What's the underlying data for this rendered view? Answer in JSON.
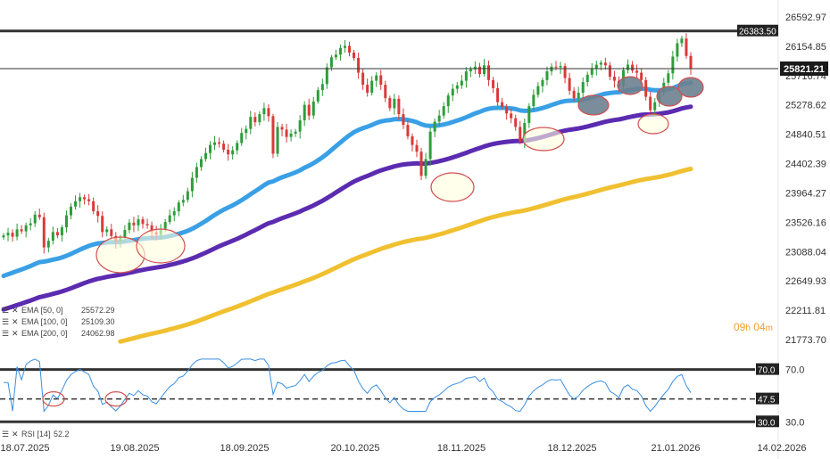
{
  "chart_data": {
    "type": "candlestick",
    "price_axis": {
      "ticks": [
        "26592.97",
        "26154.85",
        "25716.74",
        "25278.62",
        "24840.51",
        "24402.39",
        "23964.27",
        "23526.16",
        "23088.04",
        "22649.93",
        "22211.81",
        "21773.70"
      ],
      "ylim": [
        21773.7,
        26592.97
      ]
    },
    "rsi_axis": {
      "ticks": [
        "70.0",
        "30.0"
      ],
      "ylim": [
        22,
        82
      ]
    },
    "dates": [
      "18.07.2025",
      "19.08.2025",
      "18.09.2025",
      "20.10.2025",
      "18.11.2025",
      "18.12.2025",
      "21.01.2026",
      "14.02.2026"
    ],
    "current_price": "25821.21",
    "resistance": "26383.50",
    "countdown": {
      "h": "09",
      "h_unit": "h",
      "m": "04",
      "m_unit": "m"
    },
    "rsi_lines": {
      "upper": "70.0",
      "lower": "30.0",
      "mid": "47.5"
    },
    "legend": [
      {
        "label": "EMA [50, 0]",
        "value": "25572.29",
        "color": "#3aa0e6"
      },
      {
        "label": "EMA [100, 0]",
        "value": "25109.30",
        "color": "#5b2bb0"
      },
      {
        "label": "EMA [200, 0]",
        "value": "24062.98",
        "color": "#f0c030"
      }
    ],
    "rsi_legend": {
      "label": "RSI [14]",
      "value": "52.2"
    },
    "closes": [
      23330,
      23370,
      23310,
      23420,
      23390,
      23480,
      23510,
      23640,
      23600,
      23150,
      23250,
      23380,
      23330,
      23450,
      23630,
      23760,
      23840,
      23900,
      23870,
      23840,
      23690,
      23620,
      23380,
      23420,
      23320,
      23230,
      23300,
      23410,
      23520,
      23480,
      23570,
      23500,
      23480,
      23380,
      23340,
      23430,
      23530,
      23630,
      23690,
      23820,
      23860,
      23990,
      24190,
      24350,
      24470,
      24560,
      24680,
      24720,
      24700,
      24610,
      24540,
      24600,
      24710,
      24860,
      24920,
      25100,
      25020,
      25140,
      25230,
      25110,
      24550,
      24950,
      24910,
      24800,
      24850,
      24880,
      25050,
      25280,
      25120,
      25330,
      25500,
      25590,
      25840,
      25990,
      26030,
      26130,
      26160,
      26060,
      25980,
      25760,
      25580,
      25460,
      25640,
      25720,
      25580,
      25380,
      25230,
      25370,
      25140,
      24980,
      24810,
      24680,
      24580,
      24220,
      24470,
      24880,
      25030,
      25120,
      25260,
      25420,
      25520,
      25570,
      25640,
      25780,
      25810,
      25850,
      25740,
      25870,
      25650,
      25530,
      25320,
      25250,
      25150,
      25080,
      24950,
      24730,
      25010,
      25260,
      25430,
      25560,
      25650,
      25780,
      25850,
      25840,
      25860,
      25680,
      25490,
      25380,
      25460,
      25620,
      25730,
      25820,
      25880,
      25910,
      25870,
      25700,
      25640,
      25560,
      25800,
      25880,
      25790,
      25760,
      25650,
      25400,
      25200,
      25320,
      25470,
      25610,
      25750,
      26000,
      26200,
      26270,
      26010,
      25821
    ]
  }
}
